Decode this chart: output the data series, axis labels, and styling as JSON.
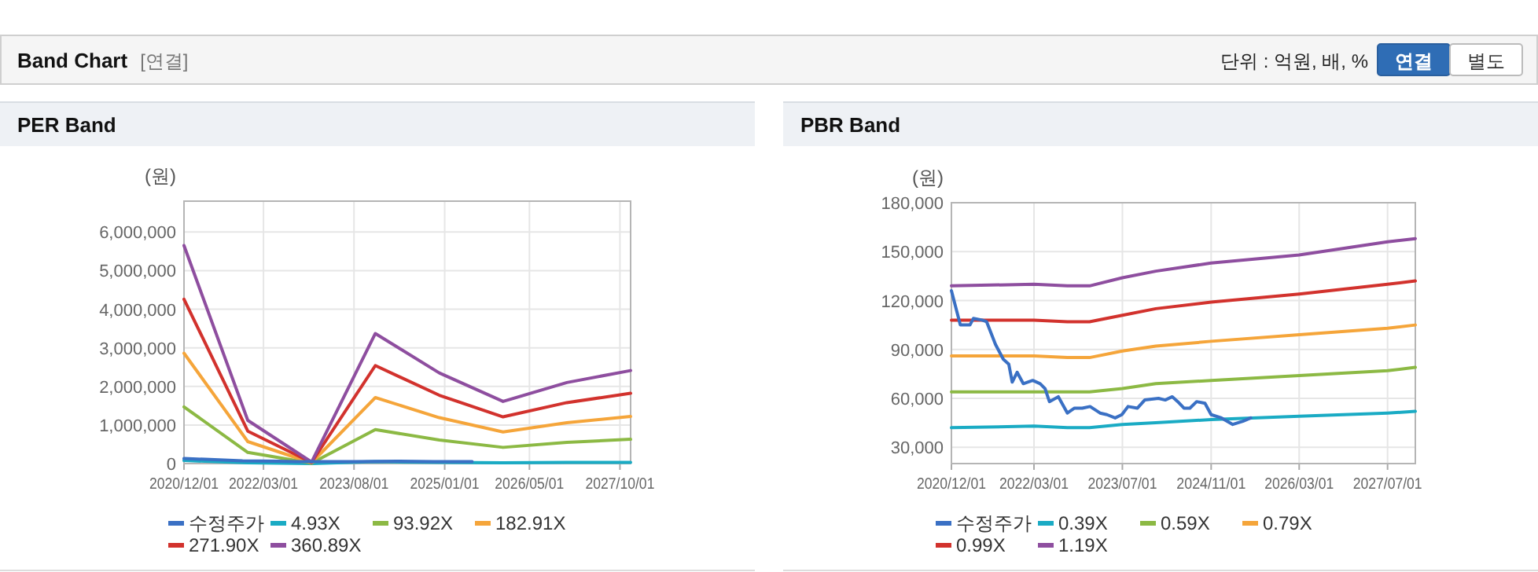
{
  "chart_data": [
    {
      "type": "other",
      "title": "Band Chart",
      "annotations": [
        "[연결]",
        "단위 : 억원, 배, %",
        "연결",
        "별도"
      ]
    },
    {
      "type": "line",
      "title": "PER Band",
      "ylabel": "(원)",
      "grid": true,
      "legend": "bottom",
      "xlim": [
        "2020-12-01",
        "2027-12-01"
      ],
      "ylim": [
        0,
        6800000
      ],
      "xticks": [
        {
          "value": "2020-12-01",
          "label": "2020/12/01"
        },
        {
          "value": "2022-03-01",
          "label": "2022/03/01"
        },
        {
          "value": "2023-08-01",
          "label": "2023/08/01"
        },
        {
          "value": "2025-01-01",
          "label": "2025/01/01"
        },
        {
          "value": "2026-05-01",
          "label": "2026/05/01"
        },
        {
          "value": "2027-10-01",
          "label": "2027/10/01"
        }
      ],
      "yticks": [
        0,
        {
          "value": 1000000,
          "label": "1,000,000"
        },
        {
          "value": 2000000,
          "label": "2,000,000"
        },
        {
          "value": 3000000,
          "label": "3,000,000"
        },
        {
          "value": 4000000,
          "label": "4,000,000"
        },
        {
          "value": 5000000,
          "label": "5,000,000"
        },
        {
          "value": 6000000,
          "label": "6,000,000"
        }
      ],
      "x": [
        "2020-12-01",
        "2021-12-01",
        "2022-12-01",
        "2023-12-01",
        "2024-12-01",
        "2025-12-01",
        "2026-12-01",
        "2027-12-01"
      ],
      "series": [
        {
          "name": "수정주가",
          "color": "#3a70c4",
          "x": [
            "2020-12-01",
            "2021-04-01",
            "2021-11-01",
            "2022-05-25",
            "2022-09-01",
            "2023-08-01",
            "2024-04-01",
            "2024-11-01",
            "2025-06-07"
          ],
          "values": [
            130000,
            110000,
            70000,
            60000,
            50000,
            50000,
            60000,
            50000,
            50000
          ]
        },
        {
          "name": "4.93X",
          "color": "#1aabc4",
          "values": [
            80000,
            20000,
            0,
            50000,
            30000,
            20000,
            30000,
            30000
          ]
        },
        {
          "name": "93.92X",
          "color": "#8cb944",
          "values": [
            1470000,
            290000,
            10000,
            880000,
            610000,
            420000,
            550000,
            630000
          ]
        },
        {
          "name": "182.91X",
          "color": "#f5a53a",
          "values": [
            2860000,
            570000,
            20000,
            1710000,
            1190000,
            820000,
            1060000,
            1220000
          ]
        },
        {
          "name": "271.90X",
          "color": "#d2322d",
          "values": [
            4260000,
            840000,
            30000,
            2540000,
            1770000,
            1210000,
            1580000,
            1820000
          ]
        },
        {
          "name": "360.89X",
          "color": "#8e4e9f",
          "values": [
            5650000,
            1120000,
            40000,
            3370000,
            2350000,
            1610000,
            2100000,
            2410000
          ]
        }
      ]
    },
    {
      "type": "line",
      "title": "PBR Band",
      "ylabel": "(원)",
      "grid": true,
      "legend": "bottom",
      "xlim": [
        "2020-12-01",
        "2027-12-01"
      ],
      "ylim": [
        20000,
        180000
      ],
      "xticks": [
        {
          "value": "2020-12-01",
          "label": "2020/12/01"
        },
        {
          "value": "2022-03-01",
          "label": "2022/03/01"
        },
        {
          "value": "2023-07-01",
          "label": "2023/07/01"
        },
        {
          "value": "2024-11-01",
          "label": "2024/11/01"
        },
        {
          "value": "2026-03-01",
          "label": "2026/03/01"
        },
        {
          "value": "2027-07-01",
          "label": "2027/07/01"
        }
      ],
      "yticks": [
        {
          "value": 30000,
          "label": "30,000"
        },
        {
          "value": 60000,
          "label": "60,000"
        },
        {
          "value": 90000,
          "label": "90,000"
        },
        {
          "value": 120000,
          "label": "120,000"
        },
        {
          "value": 150000,
          "label": "150,000"
        },
        {
          "value": 180000,
          "label": "180,000"
        }
      ],
      "x": [
        "2020-12-01",
        "2022-03-01",
        "2022-09-01",
        "2023-01-01",
        "2023-07-01",
        "2024-01-01",
        "2024-11-01",
        "2026-03-01",
        "2027-07-01",
        "2027-12-01"
      ],
      "series": [
        {
          "name": "수정주가",
          "color": "#3a70c4",
          "x": [
            "2020-12-01",
            "2021-01-19",
            "2021-03-13",
            "2021-04-01",
            "2021-05-19",
            "2021-06-13",
            "2021-08-01",
            "2021-09-13",
            "2021-10-13",
            "2021-11-01",
            "2021-11-28",
            "2022-01-01",
            "2022-02-22",
            "2022-04-04",
            "2022-05-01",
            "2022-05-25",
            "2022-07-13",
            "2022-09-01",
            "2022-10-10",
            "2022-11-22",
            "2023-01-04",
            "2023-02-28",
            "2023-04-07",
            "2023-05-22",
            "2023-06-28",
            "2023-08-01",
            "2023-09-22",
            "2023-11-01",
            "2024-01-16",
            "2024-02-22",
            "2024-04-01",
            "2024-05-01",
            "2024-06-04",
            "2024-07-07",
            "2024-08-13",
            "2024-09-28",
            "2024-11-01",
            "2024-12-28",
            "2025-02-28",
            "2025-04-25",
            "2025-06-07"
          ],
          "values": [
            126000,
            105000,
            105000,
            109000,
            108000,
            107000,
            93000,
            84000,
            81000,
            70000,
            76000,
            69000,
            71000,
            69000,
            66000,
            58000,
            61000,
            51000,
            54000,
            54000,
            55000,
            51000,
            50000,
            48000,
            50000,
            55000,
            54000,
            59000,
            60000,
            59000,
            61000,
            58000,
            54000,
            54000,
            58000,
            57000,
            50000,
            48000,
            44000,
            46000,
            48000
          ]
        },
        {
          "name": "0.39X",
          "color": "#1aabc4",
          "values": [
            42000,
            43000,
            42000,
            42000,
            44000,
            45000,
            47000,
            49000,
            51000,
            52000
          ]
        },
        {
          "name": "0.59X",
          "color": "#8cb944",
          "values": [
            64000,
            64000,
            64000,
            64000,
            66000,
            69000,
            71000,
            74000,
            77000,
            79000
          ]
        },
        {
          "name": "0.79X",
          "color": "#f5a53a",
          "values": [
            86000,
            86000,
            85000,
            85000,
            89000,
            92000,
            95000,
            99000,
            103000,
            105000
          ]
        },
        {
          "name": "0.99X",
          "color": "#d2322d",
          "values": [
            108000,
            108000,
            107000,
            107000,
            111000,
            115000,
            119000,
            124000,
            130000,
            132000
          ]
        },
        {
          "name": "1.19X",
          "color": "#8e4e9f",
          "values": [
            129000,
            130000,
            129000,
            129000,
            134000,
            138000,
            143000,
            148000,
            156000,
            158000
          ]
        }
      ]
    }
  ]
}
